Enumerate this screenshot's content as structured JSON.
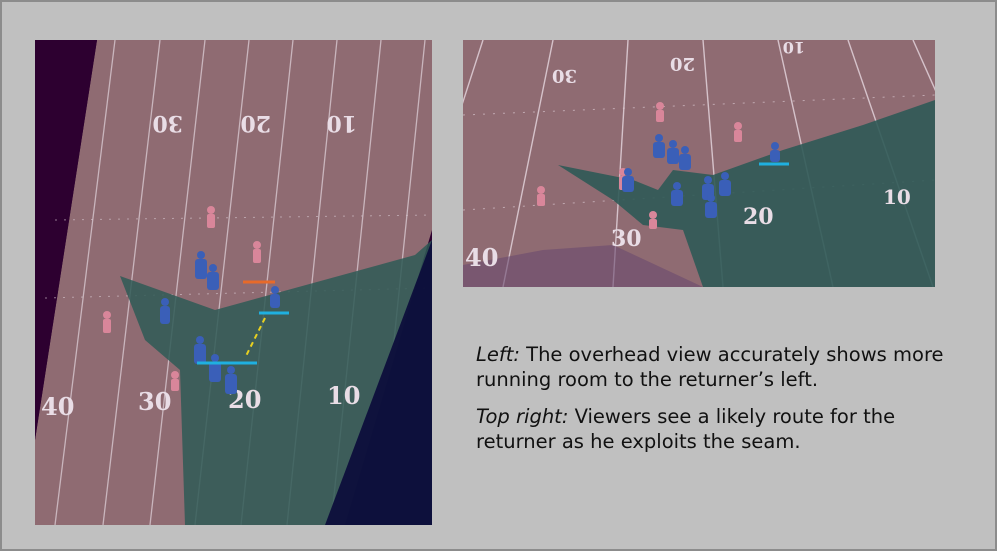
{
  "left_view": {
    "yard_numbers_top": [
      "30",
      "20",
      "10"
    ],
    "yard_numbers_bottom": [
      "40",
      "30",
      "20",
      "10"
    ]
  },
  "right_view": {
    "yard_numbers_top": [
      "30",
      "20",
      "10"
    ],
    "yard_numbers_bottom": [
      "40",
      "30",
      "20",
      "10"
    ]
  },
  "caption": {
    "left_label": "Left:",
    "left_text": " The overhead view accurately shows more running room to the returner’s left.",
    "right_label": "Top right:",
    "right_text": " Viewers see a likely route for the returner as he exploits the seam."
  },
  "colors": {
    "frame": "#c0c0c0",
    "field": "#8f6b72",
    "shadow_region": "#2f5a56",
    "line_blue": "#1fb0e0",
    "line_orange": "#e76a2a",
    "line_yellow": "#e8d020",
    "player_home": "#3a5fb8",
    "player_away": "#d9869a"
  }
}
